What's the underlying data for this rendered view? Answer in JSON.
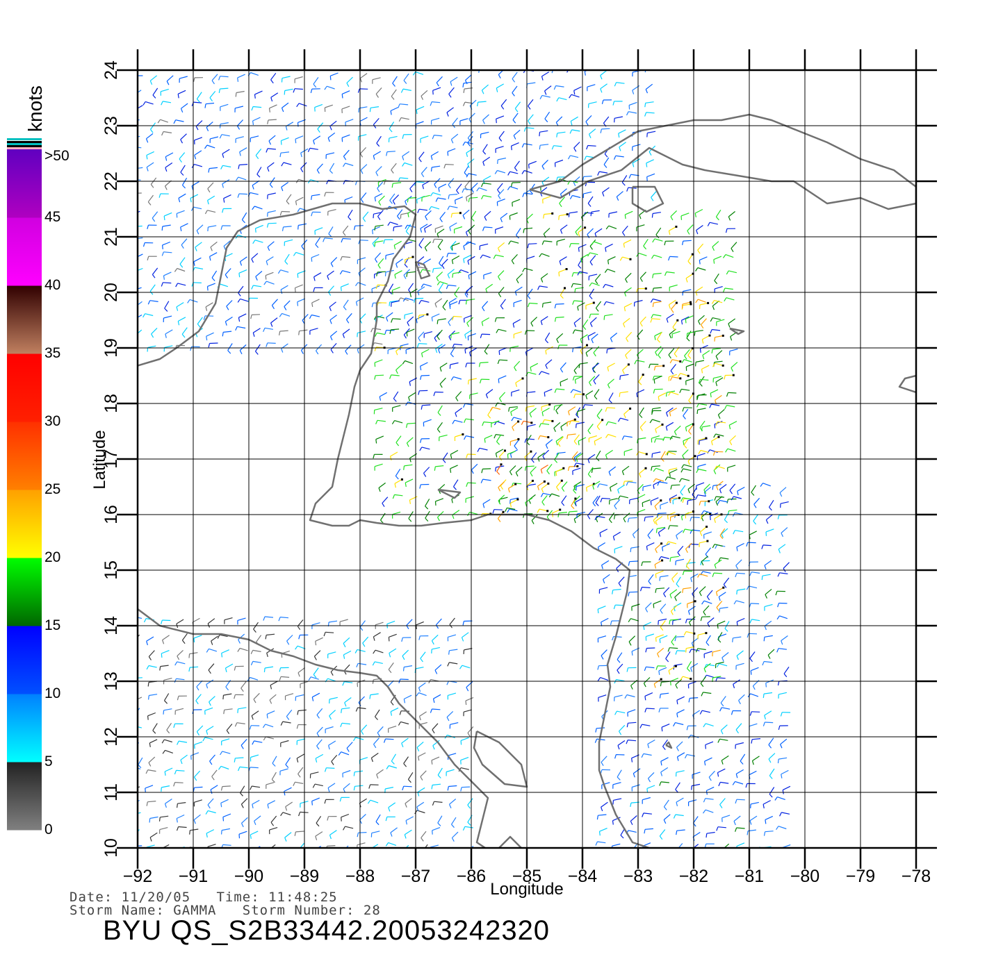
{
  "colorbar": {
    "title": "knots",
    "labels": [
      ">50",
      "45",
      "40",
      "35",
      "30",
      "25",
      "20",
      "15",
      "10",
      "5",
      "0"
    ],
    "bands": [
      {
        "from": 0,
        "to": 5,
        "colors": [
          "#808080",
          "#222222"
        ]
      },
      {
        "from": 5,
        "to": 10,
        "colors": [
          "#00ffff",
          "#0080ff"
        ]
      },
      {
        "from": 10,
        "to": 15,
        "colors": [
          "#0050ff",
          "#0000ff"
        ]
      },
      {
        "from": 15,
        "to": 20,
        "colors": [
          "#006600",
          "#00ff00"
        ]
      },
      {
        "from": 20,
        "to": 25,
        "colors": [
          "#ffff00",
          "#ffa000"
        ]
      },
      {
        "from": 25,
        "to": 30,
        "colors": [
          "#ff8000",
          "#ff3000"
        ]
      },
      {
        "from": 30,
        "to": 35,
        "colors": [
          "#ff2000",
          "#ff0000"
        ]
      },
      {
        "from": 35,
        "to": 40,
        "colors": [
          "#c08060",
          "#300000"
        ]
      },
      {
        "from": 40,
        "to": 45,
        "colors": [
          "#ff00ff",
          "#d000e0"
        ]
      },
      {
        "from": 45,
        "to": 50,
        "colors": [
          "#b000c0",
          "#6000c0"
        ]
      }
    ]
  },
  "map": {
    "xlabel": "Longitude",
    "ylabel": "Latitude",
    "lon_range": [
      -92,
      -78
    ],
    "lat_range": [
      10,
      24
    ],
    "x_ticks": [
      "-92",
      "-91",
      "-90",
      "-89",
      "-88",
      "-87",
      "-86",
      "-85",
      "-84",
      "-83",
      "-82",
      "-81",
      "-80",
      "-79",
      "-78"
    ],
    "y_ticks": [
      "10",
      "11",
      "12",
      "13",
      "14",
      "15",
      "16",
      "17",
      "18",
      "19",
      "20",
      "21",
      "22",
      "23",
      "24"
    ],
    "coast_color": "#707070",
    "grid_color": "#000000"
  },
  "footer": {
    "date_line": "Date: 11/20/05   Time: 11:48:25",
    "storm_line": "Storm Name: GAMMA   Storm Number: 28",
    "product": "BYU QS_S2B33442.20053242320"
  }
}
